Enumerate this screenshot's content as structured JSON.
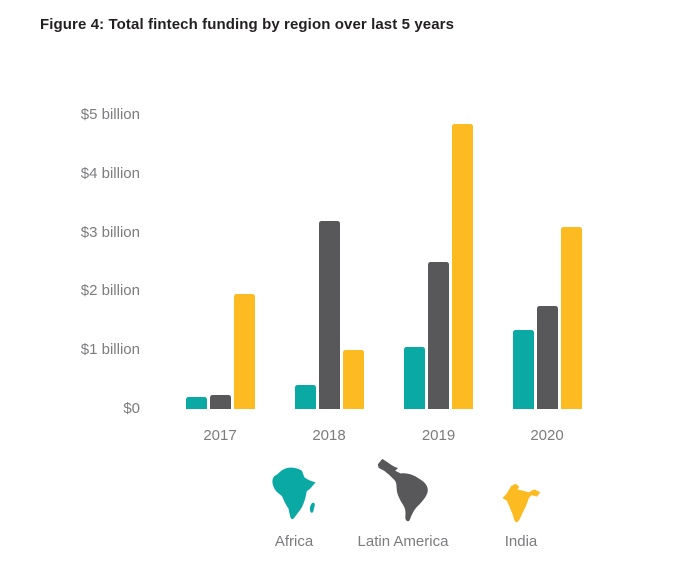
{
  "title": "Figure 4: Total fintech funding by region over last 5 years",
  "chart_data": {
    "type": "bar",
    "title": "Total fintech funding by region over last 5 years",
    "units": "USD billions",
    "categories": [
      "2017",
      "2018",
      "2019",
      "2020"
    ],
    "series": [
      {
        "name": "Africa",
        "color": "#0ba9a4",
        "values": [
          0.2,
          0.4,
          1.05,
          1.35
        ]
      },
      {
        "name": "Latin America",
        "color": "#58585a",
        "values": [
          0.23,
          3.2,
          2.5,
          1.75
        ]
      },
      {
        "name": "India",
        "color": "#fbbb21",
        "values": [
          1.95,
          1.0,
          4.85,
          3.1
        ]
      }
    ],
    "yticks": [
      {
        "value": 0,
        "label": "$0"
      },
      {
        "value": 1,
        "label": "$1 billion"
      },
      {
        "value": 2,
        "label": "$2 billion"
      },
      {
        "value": 3,
        "label": "$3 billion"
      },
      {
        "value": 4,
        "label": "$4 billion"
      },
      {
        "value": 5,
        "label": "$5 billion"
      }
    ],
    "ylim": [
      0,
      5
    ],
    "grid": false,
    "legend_position": "bottom"
  },
  "legend": {
    "items": [
      {
        "label": "Africa",
        "icon": "africa-map-icon",
        "color": "#0ba9a4"
      },
      {
        "label": "Latin America",
        "icon": "latin-america-map-icon",
        "color": "#58585a"
      },
      {
        "label": "India",
        "icon": "india-map-icon",
        "color": "#fbbb21"
      }
    ]
  },
  "colors": {
    "title_text": "#231f20",
    "axis_text": "#7b7c7f",
    "background": "#ffffff"
  }
}
